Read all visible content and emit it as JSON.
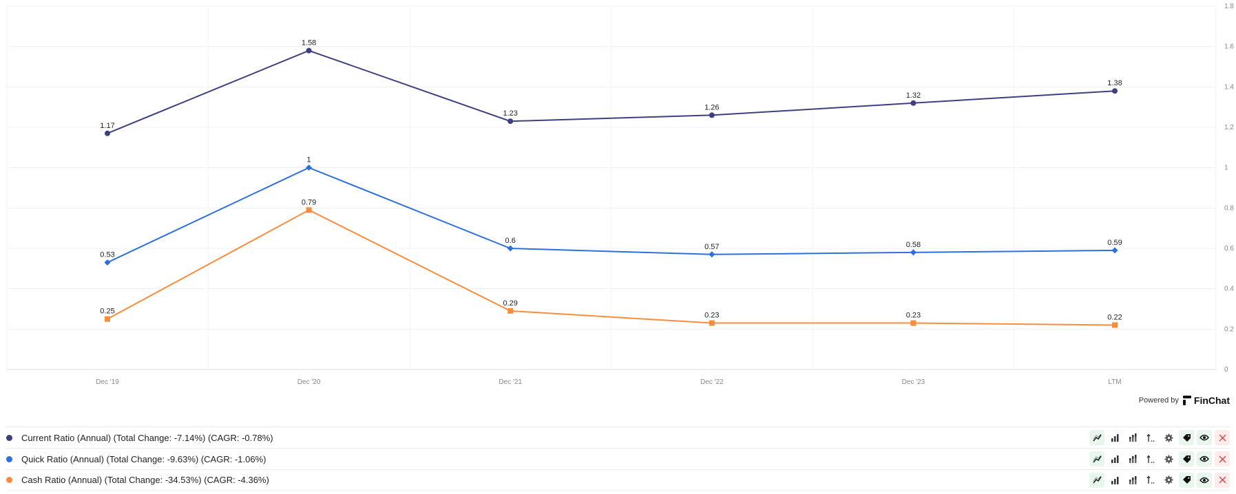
{
  "chart_data": {
    "type": "line",
    "categories": [
      "Dec '19",
      "Dec '20",
      "Dec '21",
      "Dec '22",
      "Dec '23",
      "LTM"
    ],
    "ylim": [
      0,
      1.8
    ],
    "yticks": [
      "0",
      "0.2",
      "0.4",
      "0.6",
      "0.8",
      "1",
      "1.2",
      "1.4",
      "1.6",
      "1.8"
    ],
    "y_axis_side": "right",
    "grid": true,
    "series": [
      {
        "name": "Current Ratio (Annual)",
        "color": "#3d3f82",
        "marker": "circle",
        "values": [
          1.17,
          1.58,
          1.23,
          1.26,
          1.32,
          1.38
        ],
        "labels": [
          "1.17",
          "1.58",
          "1.23",
          "1.26",
          "1.32",
          "1.38"
        ]
      },
      {
        "name": "Quick Ratio (Annual)",
        "color": "#2b6fe0",
        "marker": "diamond",
        "values": [
          0.53,
          1,
          0.6,
          0.57,
          0.58,
          0.59
        ],
        "labels": [
          "0.53",
          "1",
          "0.6",
          "0.57",
          "0.58",
          "0.59"
        ]
      },
      {
        "name": "Cash Ratio (Annual)",
        "color": "#fb8c3c",
        "marker": "square",
        "values": [
          0.25,
          0.79,
          0.29,
          0.23,
          0.23,
          0.22
        ],
        "labels": [
          "0.25",
          "0.79",
          "0.29",
          "0.23",
          "0.23",
          "0.22"
        ]
      }
    ]
  },
  "powered_by": {
    "text": "Powered by",
    "brand": "FinChat"
  },
  "legend": [
    {
      "label": "Current Ratio (Annual) (Total Change: -7.14%) (CAGR: -0.78%)",
      "color": "#3d3f82"
    },
    {
      "label": "Quick Ratio (Annual) (Total Change: -9.63%) (CAGR: -1.06%)",
      "color": "#2b6fe0"
    },
    {
      "label": "Cash Ratio (Annual) (Total Change: -34.53%) (CAGR: -4.36%)",
      "color": "#fb8c3c"
    }
  ],
  "tool_icons": [
    "line-chart-icon",
    "bar-chart-icon",
    "stacked-bar-icon",
    "sort-icon",
    "gear-icon",
    "tag-icon",
    "eye-icon",
    "close-icon"
  ]
}
